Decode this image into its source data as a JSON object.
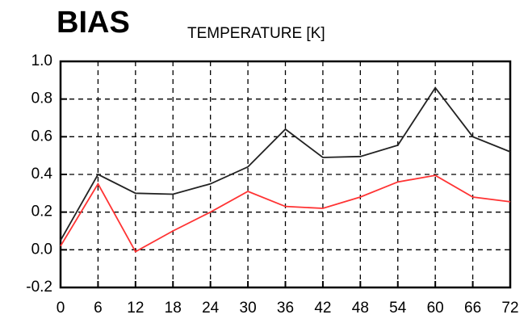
{
  "chart_data": {
    "type": "line",
    "title": "BIAS",
    "subtitle": "TEMPERATURE [K]",
    "x": [
      0,
      6,
      12,
      18,
      24,
      30,
      36,
      42,
      48,
      54,
      60,
      66,
      72
    ],
    "series": [
      {
        "color": "#222222",
        "values": [
          0.05,
          0.4,
          0.3,
          0.295,
          0.35,
          0.44,
          0.64,
          0.49,
          0.495,
          0.555,
          0.86,
          0.6,
          0.52
        ]
      },
      {
        "color": "#ff3333",
        "values": [
          0.02,
          0.35,
          -0.01,
          0.1,
          0.2,
          0.31,
          0.23,
          0.22,
          0.28,
          0.36,
          0.395,
          0.28,
          0.255
        ]
      }
    ],
    "xlim": [
      0,
      72
    ],
    "xticks": [
      0,
      6,
      12,
      18,
      24,
      30,
      36,
      42,
      48,
      54,
      60,
      66,
      72
    ],
    "ylim": [
      -0.2,
      1.0
    ],
    "yticks": [
      {
        "value": -0.2,
        "label": "-0.2"
      },
      {
        "value": 0,
        "label": "0.0"
      },
      {
        "value": 0.2,
        "label": "0.2"
      },
      {
        "value": 0.4,
        "label": "0.4"
      },
      {
        "value": 0.6,
        "label": "0.6"
      },
      {
        "value": 0.8,
        "label": "0.8"
      },
      {
        "value": 1.0,
        "label": "1.0"
      }
    ],
    "grid": true
  }
}
